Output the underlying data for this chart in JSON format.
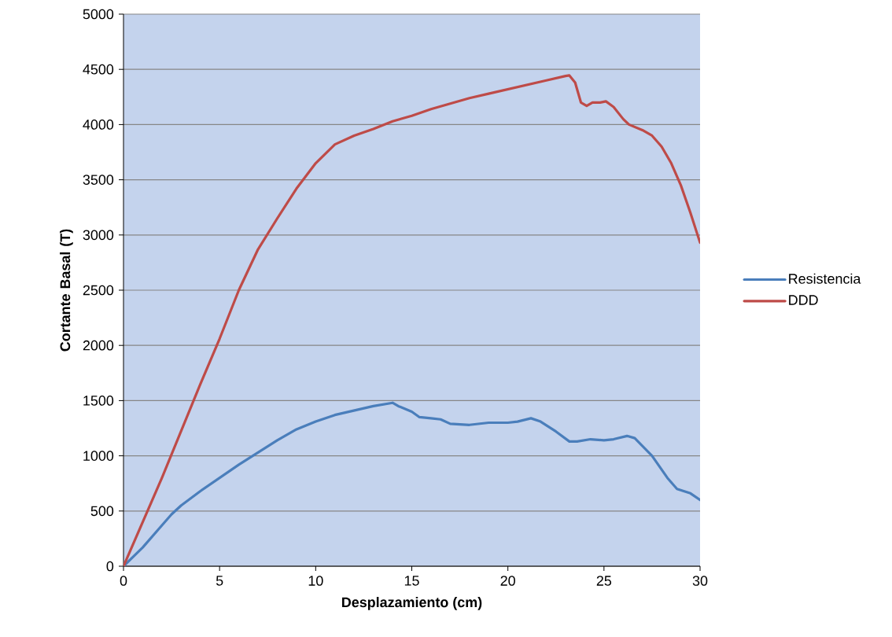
{
  "chart_data": {
    "type": "line",
    "xlabel": "Desplazamiento (cm)",
    "ylabel": "Cortante Basal (T)",
    "xlim": [
      0,
      30
    ],
    "xticks": [
      0,
      5,
      10,
      15,
      20,
      25,
      30
    ],
    "ylim": [
      0,
      5000
    ],
    "yticks": [
      0,
      500,
      1000,
      1500,
      2000,
      2500,
      3000,
      3500,
      4000,
      4500,
      5000
    ],
    "grid": "y",
    "legend": "right",
    "marker": "none",
    "line_style": "solid",
    "series": [
      {
        "name": "Resistencia",
        "color": "#4a7ebb",
        "x": [
          0,
          1,
          2,
          2.5,
          3,
          4,
          5,
          6,
          7,
          8,
          9,
          10,
          11,
          12,
          13,
          14,
          14.3,
          15,
          15.4,
          16,
          16.5,
          17,
          18,
          19,
          20,
          20.5,
          21.2,
          21.7,
          22.5,
          23.2,
          23.6,
          24.3,
          25,
          25.5,
          26.2,
          26.6,
          27.5,
          28.3,
          28.8,
          29.5,
          30
        ],
        "values": [
          0,
          170,
          370,
          470,
          550,
          680,
          800,
          920,
          1030,
          1140,
          1240,
          1310,
          1370,
          1410,
          1450,
          1480,
          1450,
          1400,
          1350,
          1340,
          1330,
          1290,
          1280,
          1300,
          1300,
          1310,
          1340,
          1310,
          1220,
          1130,
          1130,
          1150,
          1140,
          1150,
          1180,
          1160,
          1000,
          800,
          700,
          660,
          600
        ]
      },
      {
        "name": "DDD",
        "color": "#be4b48",
        "x": [
          0,
          2,
          4,
          5,
          6,
          7,
          8,
          9,
          10,
          11,
          12,
          13,
          14,
          15,
          16,
          17,
          18,
          19,
          20,
          21,
          22,
          23,
          23.2,
          23.5,
          23.8,
          24.1,
          24.4,
          24.8,
          25.1,
          25.5,
          26,
          26.3,
          27,
          27.5,
          28,
          28.5,
          29,
          29.5,
          30
        ],
        "values": [
          0,
          800,
          1650,
          2060,
          2500,
          2870,
          3150,
          3420,
          3650,
          3820,
          3900,
          3960,
          4030,
          4080,
          4140,
          4190,
          4240,
          4280,
          4320,
          4360,
          4400,
          4440,
          4445,
          4380,
          4200,
          4170,
          4200,
          4200,
          4210,
          4160,
          4050,
          4000,
          3950,
          3900,
          3800,
          3650,
          3450,
          3200,
          2930
        ]
      }
    ]
  }
}
